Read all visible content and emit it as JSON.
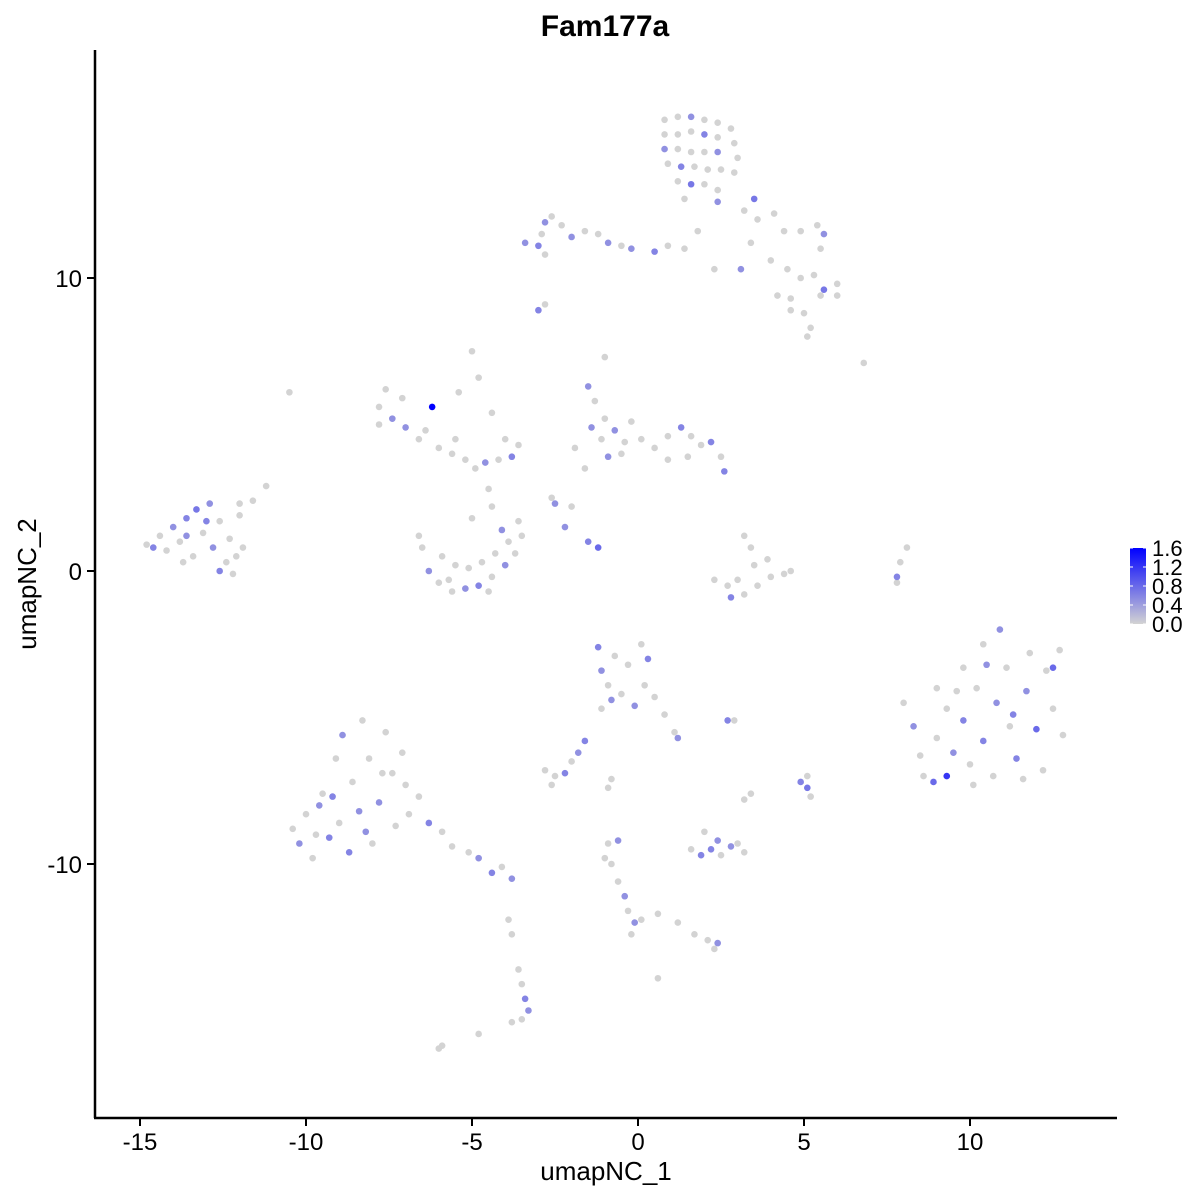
{
  "chart_data": {
    "type": "scatter",
    "title": "Fam177a",
    "xlabel": "umapNC_1",
    "ylabel": "umapNC_2",
    "xlim": [
      -16.4,
      14.4
    ],
    "ylim": [
      -18.7,
      17.8
    ],
    "xticks": [
      -15,
      -10,
      -5,
      0,
      5,
      10
    ],
    "yticks": [
      -10,
      0,
      10
    ],
    "xtick_labels": [
      "-15",
      "-10",
      "-5",
      "0",
      "5",
      "10"
    ],
    "ytick_labels": [
      "-10",
      "0",
      "10"
    ],
    "grid": false,
    "legend": {
      "position": "right",
      "type": "colorbar",
      "min": 0.0,
      "max": 1.6,
      "ticks": [
        0.0,
        0.4,
        0.8,
        1.2,
        1.6
      ],
      "tick_labels": [
        "0.0",
        "0.4",
        "0.8",
        "1.2",
        "1.6"
      ],
      "low_color": "#D3D3D3",
      "high_color": "#0000FF"
    },
    "point_format": [
      "x",
      "y",
      "expression"
    ],
    "points": [
      [
        0.8,
        15.4,
        0
      ],
      [
        1.2,
        15.5,
        0
      ],
      [
        1.6,
        15.5,
        0.5
      ],
      [
        2.0,
        15.4,
        0
      ],
      [
        2.4,
        15.3,
        0
      ],
      [
        2.8,
        15.1,
        0
      ],
      [
        0.8,
        14.9,
        0
      ],
      [
        1.2,
        14.9,
        0
      ],
      [
        1.6,
        15.0,
        0
      ],
      [
        2.0,
        14.9,
        0.6
      ],
      [
        2.4,
        14.8,
        0
      ],
      [
        2.9,
        14.6,
        0
      ],
      [
        0.8,
        14.4,
        0.5
      ],
      [
        1.2,
        14.4,
        0
      ],
      [
        1.6,
        14.3,
        0
      ],
      [
        2.0,
        14.3,
        0
      ],
      [
        2.4,
        14.3,
        0.5
      ],
      [
        3.0,
        14.1,
        0
      ],
      [
        0.9,
        13.9,
        0
      ],
      [
        1.3,
        13.8,
        0.6
      ],
      [
        1.7,
        13.8,
        0
      ],
      [
        2.1,
        13.7,
        0
      ],
      [
        2.5,
        13.7,
        0
      ],
      [
        2.9,
        13.6,
        0
      ],
      [
        1.2,
        13.3,
        0
      ],
      [
        1.6,
        13.2,
        0.7
      ],
      [
        2.0,
        13.2,
        0
      ],
      [
        2.4,
        13.0,
        0
      ],
      [
        1.4,
        12.7,
        0
      ],
      [
        2.4,
        12.6,
        0.5
      ],
      [
        3.5,
        12.7,
        0.7
      ],
      [
        3.2,
        12.3,
        0
      ],
      [
        3.6,
        12.0,
        0
      ],
      [
        4.1,
        12.2,
        0
      ],
      [
        4.4,
        11.6,
        0
      ],
      [
        4.9,
        11.6,
        0
      ],
      [
        5.4,
        11.8,
        0
      ],
      [
        5.6,
        11.5,
        0.5
      ],
      [
        5.5,
        11.0,
        0
      ],
      [
        4.0,
        10.6,
        0
      ],
      [
        4.5,
        10.3,
        0
      ],
      [
        4.9,
        10.0,
        0
      ],
      [
        5.3,
        10.1,
        0
      ],
      [
        5.6,
        9.6,
        0.7
      ],
      [
        6.0,
        9.8,
        0
      ],
      [
        6.0,
        9.4,
        0
      ],
      [
        5.5,
        9.4,
        0
      ],
      [
        4.6,
        9.3,
        0
      ],
      [
        4.2,
        9.4,
        0
      ],
      [
        4.6,
        8.9,
        0
      ],
      [
        5.0,
        8.8,
        0
      ],
      [
        5.2,
        8.3,
        0
      ],
      [
        3.1,
        10.3,
        0.5
      ],
      [
        2.3,
        10.3,
        0
      ],
      [
        3.4,
        11.2,
        0
      ],
      [
        -3.4,
        11.2,
        0.5
      ],
      [
        -3.0,
        11.1,
        0.6
      ],
      [
        -2.8,
        11.9,
        0.5
      ],
      [
        -2.6,
        12.1,
        0
      ],
      [
        -2.3,
        11.8,
        0
      ],
      [
        -2.0,
        11.4,
        0.5
      ],
      [
        -1.6,
        11.6,
        0
      ],
      [
        -1.2,
        11.5,
        0
      ],
      [
        -0.9,
        11.2,
        0.5
      ],
      [
        -0.5,
        11.1,
        0
      ],
      [
        -0.2,
        11.0,
        0.5
      ],
      [
        0.5,
        10.9,
        0.6
      ],
      [
        0.9,
        11.1,
        0
      ],
      [
        1.4,
        11.0,
        0
      ],
      [
        1.8,
        11.6,
        0
      ],
      [
        -2.8,
        10.8,
        0
      ],
      [
        -3.0,
        8.9,
        0.6
      ],
      [
        -2.8,
        9.1,
        0
      ],
      [
        -2.9,
        11.5,
        0
      ],
      [
        -14.6,
        0.8,
        0.6
      ],
      [
        -14.4,
        1.2,
        0
      ],
      [
        -14.2,
        0.7,
        0
      ],
      [
        -14.0,
        1.5,
        0.5
      ],
      [
        -13.8,
        1.0,
        0
      ],
      [
        -13.6,
        1.8,
        0.6
      ],
      [
        -13.4,
        0.5,
        0
      ],
      [
        -13.3,
        2.1,
        0.7
      ],
      [
        -13.1,
        1.3,
        0
      ],
      [
        -12.9,
        2.3,
        0.5
      ],
      [
        -12.8,
        0.8,
        0.5
      ],
      [
        -12.6,
        1.7,
        0
      ],
      [
        -12.4,
        0.3,
        0
      ],
      [
        -12.3,
        1.1,
        0
      ],
      [
        -12.1,
        0.5,
        0
      ],
      [
        -12.0,
        1.9,
        0
      ],
      [
        -11.9,
        0.8,
        0
      ],
      [
        -13.7,
        0.3,
        0
      ],
      [
        -14.8,
        0.9,
        0
      ],
      [
        -12.2,
        -0.1,
        0
      ],
      [
        -12.6,
        0.0,
        0.6
      ],
      [
        -11.6,
        2.4,
        0
      ],
      [
        -11.2,
        2.9,
        0
      ],
      [
        -12.0,
        2.3,
        0
      ],
      [
        -13.0,
        1.7,
        0.6
      ],
      [
        -13.6,
        1.2,
        0.5
      ],
      [
        -7.8,
        5.6,
        0
      ],
      [
        -7.6,
        6.2,
        0
      ],
      [
        -7.4,
        5.2,
        0.5
      ],
      [
        -7.1,
        5.9,
        0
      ],
      [
        -7.0,
        4.9,
        0.5
      ],
      [
        -6.6,
        4.5,
        0
      ],
      [
        -6.2,
        5.6,
        1.6
      ],
      [
        -6.0,
        4.2,
        0
      ],
      [
        -5.6,
        4.0,
        0
      ],
      [
        -5.2,
        3.8,
        0
      ],
      [
        -4.9,
        3.5,
        0
      ],
      [
        -4.6,
        3.7,
        0.5
      ],
      [
        -4.2,
        3.8,
        0
      ],
      [
        -3.8,
        3.9,
        0.6
      ],
      [
        -3.6,
        4.3,
        0
      ],
      [
        -5.4,
        6.1,
        0
      ],
      [
        -5.0,
        7.5,
        0
      ],
      [
        -4.8,
        6.6,
        0
      ],
      [
        -4.4,
        5.4,
        0
      ],
      [
        -4.0,
        4.5,
        0
      ],
      [
        -7.8,
        5.0,
        0
      ],
      [
        -6.4,
        4.8,
        0
      ],
      [
        -4.5,
        2.8,
        0
      ],
      [
        -4.4,
        2.2,
        0
      ],
      [
        -6.5,
        0.8,
        0
      ],
      [
        -6.3,
        0.0,
        0.5
      ],
      [
        -6.0,
        -0.4,
        0
      ],
      [
        -5.6,
        -0.7,
        0
      ],
      [
        -5.2,
        -0.6,
        0.5
      ],
      [
        -4.8,
        -0.5,
        0.6
      ],
      [
        -4.4,
        -0.2,
        0
      ],
      [
        -4.0,
        0.2,
        0.5
      ],
      [
        -3.7,
        0.6,
        0
      ],
      [
        -3.5,
        1.2,
        0
      ],
      [
        -3.6,
        1.7,
        0
      ],
      [
        -3.9,
        1.0,
        0
      ],
      [
        -4.3,
        0.6,
        0
      ],
      [
        -4.7,
        0.3,
        0
      ],
      [
        -5.1,
        0.1,
        0
      ],
      [
        -5.5,
        0.2,
        0
      ],
      [
        -5.9,
        0.5,
        0
      ],
      [
        -6.6,
        1.2,
        0
      ],
      [
        -5.7,
        -0.3,
        0
      ],
      [
        -4.5,
        -0.7,
        0
      ],
      [
        -5.0,
        1.8,
        0
      ],
      [
        -4.1,
        1.4,
        0.5
      ],
      [
        -1.5,
        6.3,
        0.5
      ],
      [
        -1.3,
        5.8,
        0
      ],
      [
        -1.0,
        5.2,
        0
      ],
      [
        -1.4,
        4.9,
        0.5
      ],
      [
        -1.1,
        4.5,
        0
      ],
      [
        -0.7,
        4.8,
        0.5
      ],
      [
        -0.4,
        4.4,
        0
      ],
      [
        -0.9,
        3.9,
        0.5
      ],
      [
        -0.5,
        4.0,
        0
      ],
      [
        0.1,
        4.5,
        0
      ],
      [
        0.5,
        4.2,
        0
      ],
      [
        0.9,
        4.6,
        0
      ],
      [
        1.3,
        4.9,
        0.6
      ],
      [
        1.6,
        4.6,
        0
      ],
      [
        1.9,
        4.3,
        0
      ],
      [
        2.2,
        4.4,
        0.6
      ],
      [
        2.5,
        3.9,
        0
      ],
      [
        2.6,
        3.4,
        0.6
      ],
      [
        1.5,
        3.9,
        0
      ],
      [
        0.9,
        3.8,
        0
      ],
      [
        -1.6,
        3.5,
        0
      ],
      [
        -1.9,
        4.2,
        0
      ],
      [
        -0.2,
        5.1,
        0
      ],
      [
        -2.5,
        2.3,
        0.5
      ],
      [
        -2.2,
        1.5,
        0.5
      ],
      [
        -1.5,
        1.0,
        0.6
      ],
      [
        -1.2,
        0.8,
        0.8
      ],
      [
        -2.6,
        2.5,
        0
      ],
      [
        2.3,
        -0.3,
        0
      ],
      [
        2.7,
        -0.5,
        0
      ],
      [
        2.8,
        -0.9,
        0.6
      ],
      [
        3.2,
        -0.8,
        0
      ],
      [
        3.6,
        -0.5,
        0
      ],
      [
        4.0,
        -0.2,
        0
      ],
      [
        4.4,
        -0.1,
        0
      ],
      [
        4.6,
        0.0,
        0
      ],
      [
        3.9,
        0.4,
        0
      ],
      [
        3.4,
        0.8,
        0
      ],
      [
        3.2,
        1.2,
        0
      ],
      [
        3.5,
        0.2,
        0
      ],
      [
        3.0,
        -0.3,
        0
      ],
      [
        7.8,
        -0.2,
        0.6
      ],
      [
        7.9,
        0.3,
        0
      ],
      [
        8.1,
        0.8,
        0
      ],
      [
        7.8,
        -0.4,
        0
      ],
      [
        8.0,
        -4.5,
        0
      ],
      [
        8.3,
        -5.3,
        0.5
      ],
      [
        8.5,
        -6.3,
        0
      ],
      [
        8.6,
        -7.0,
        0
      ],
      [
        8.9,
        -7.2,
        0.8
      ],
      [
        9.3,
        -7.0,
        1.2
      ],
      [
        9.0,
        -5.7,
        0
      ],
      [
        9.3,
        -4.7,
        0
      ],
      [
        9.5,
        -6.2,
        0.5
      ],
      [
        9.8,
        -3.3,
        0
      ],
      [
        9.8,
        -5.1,
        0.6
      ],
      [
        10.0,
        -6.6,
        0
      ],
      [
        10.2,
        -4.0,
        0
      ],
      [
        10.4,
        -2.5,
        0
      ],
      [
        10.4,
        -5.8,
        0.6
      ],
      [
        10.7,
        -7.0,
        0
      ],
      [
        10.8,
        -4.5,
        0.5
      ],
      [
        10.9,
        -2.0,
        0.5
      ],
      [
        11.1,
        -3.3,
        0
      ],
      [
        11.2,
        -5.3,
        0
      ],
      [
        11.4,
        -6.4,
        0.6
      ],
      [
        11.7,
        -4.1,
        0.5
      ],
      [
        11.8,
        -2.8,
        0
      ],
      [
        12.0,
        -5.4,
        0.8
      ],
      [
        12.2,
        -6.8,
        0
      ],
      [
        12.3,
        -3.4,
        0
      ],
      [
        12.5,
        -4.7,
        0
      ],
      [
        12.7,
        -2.7,
        0
      ],
      [
        12.8,
        -5.6,
        0
      ],
      [
        11.6,
        -7.1,
        0
      ],
      [
        10.5,
        -3.2,
        0.5
      ],
      [
        9.6,
        -4.1,
        0
      ],
      [
        12.5,
        -3.3,
        0.8
      ],
      [
        11.3,
        -4.9,
        0.6
      ],
      [
        10.1,
        -7.3,
        0
      ],
      [
        9.0,
        -4.0,
        0
      ],
      [
        -10.4,
        -8.8,
        0
      ],
      [
        -10.2,
        -9.3,
        0.5
      ],
      [
        -10.0,
        -8.3,
        0
      ],
      [
        -9.8,
        -9.8,
        0
      ],
      [
        -9.6,
        -8.0,
        0.5
      ],
      [
        -9.5,
        -7.6,
        0
      ],
      [
        -9.3,
        -9.1,
        0.6
      ],
      [
        -9.1,
        -6.4,
        0
      ],
      [
        -9.0,
        -8.6,
        0
      ],
      [
        -8.9,
        -5.6,
        0.5
      ],
      [
        -8.7,
        -9.6,
        0.6
      ],
      [
        -8.6,
        -7.2,
        0
      ],
      [
        -8.4,
        -8.2,
        0.5
      ],
      [
        -8.3,
        -5.1,
        0
      ],
      [
        -8.1,
        -6.4,
        0
      ],
      [
        -8.0,
        -9.3,
        0
      ],
      [
        -7.8,
        -7.9,
        0.5
      ],
      [
        -7.6,
        -5.5,
        0
      ],
      [
        -7.4,
        -6.9,
        0
      ],
      [
        -7.3,
        -8.7,
        0
      ],
      [
        -7.1,
        -6.2,
        0
      ],
      [
        -6.9,
        -8.3,
        0
      ],
      [
        -6.6,
        -7.7,
        0
      ],
      [
        -6.3,
        -8.6,
        0.6
      ],
      [
        -5.9,
        -8.9,
        0
      ],
      [
        -5.6,
        -9.4,
        0
      ],
      [
        -5.1,
        -9.6,
        0
      ],
      [
        -4.8,
        -9.8,
        0.5
      ],
      [
        -4.4,
        -10.3,
        0.6
      ],
      [
        -4.1,
        -10.1,
        0
      ],
      [
        -3.8,
        -10.5,
        0.5
      ],
      [
        -9.7,
        -9.0,
        0
      ],
      [
        -8.2,
        -8.9,
        0.5
      ],
      [
        -7.7,
        -6.9,
        0
      ],
      [
        -9.2,
        -7.7,
        0.6
      ],
      [
        -7.0,
        -7.3,
        0
      ],
      [
        -1.2,
        -2.6,
        0.6
      ],
      [
        -1.1,
        -3.4,
        0.5
      ],
      [
        -0.9,
        -3.9,
        0
      ],
      [
        -0.7,
        -2.9,
        0
      ],
      [
        -0.5,
        -4.2,
        0
      ],
      [
        -0.3,
        -3.2,
        0
      ],
      [
        -0.1,
        -4.6,
        0.5
      ],
      [
        0.2,
        -3.9,
        0
      ],
      [
        0.3,
        -3.0,
        0.6
      ],
      [
        0.5,
        -4.3,
        0
      ],
      [
        -1.1,
        -4.7,
        0
      ],
      [
        0.1,
        -2.5,
        0
      ],
      [
        0.8,
        -4.9,
        0
      ],
      [
        1.1,
        -5.5,
        0
      ],
      [
        1.2,
        -5.7,
        0.5
      ],
      [
        -0.8,
        -4.4,
        0.5
      ],
      [
        -2.8,
        -6.8,
        0
      ],
      [
        -2.5,
        -7.0,
        0
      ],
      [
        -2.2,
        -6.9,
        0.6
      ],
      [
        -2.0,
        -6.5,
        0
      ],
      [
        -1.8,
        -6.2,
        0.5
      ],
      [
        -1.6,
        -5.8,
        0.6
      ],
      [
        -2.6,
        -7.3,
        0
      ],
      [
        2.7,
        -5.1,
        0.6
      ],
      [
        2.9,
        -5.1,
        0
      ],
      [
        1.6,
        -9.5,
        0
      ],
      [
        1.9,
        -9.7,
        0.6
      ],
      [
        2.2,
        -9.5,
        0.6
      ],
      [
        2.5,
        -9.7,
        0
      ],
      [
        2.8,
        -9.4,
        0.5
      ],
      [
        3.0,
        -9.3,
        0
      ],
      [
        2.0,
        -8.9,
        0
      ],
      [
        2.4,
        -9.2,
        0.5
      ],
      [
        3.2,
        -9.6,
        0
      ],
      [
        4.9,
        -7.2,
        0.6
      ],
      [
        5.1,
        -7.0,
        0
      ],
      [
        5.1,
        -7.4,
        0.7
      ],
      [
        5.2,
        -7.7,
        0
      ],
      [
        3.4,
        -7.6,
        0
      ],
      [
        3.2,
        -7.8,
        0
      ],
      [
        -0.8,
        -7.1,
        0
      ],
      [
        -0.9,
        -7.4,
        0
      ],
      [
        -0.9,
        -9.3,
        0
      ],
      [
        -0.8,
        -10.0,
        0
      ],
      [
        -0.6,
        -10.6,
        0
      ],
      [
        -0.4,
        -11.1,
        0.5
      ],
      [
        -0.3,
        -11.6,
        0
      ],
      [
        -0.1,
        -12.0,
        0.5
      ],
      [
        -0.2,
        -12.4,
        0
      ],
      [
        0.1,
        -11.9,
        0
      ],
      [
        0.6,
        -11.7,
        0
      ],
      [
        1.2,
        -12.0,
        0
      ],
      [
        1.7,
        -12.4,
        0
      ],
      [
        2.1,
        -12.6,
        0
      ],
      [
        2.4,
        -12.7,
        0.5
      ],
      [
        2.3,
        -12.9,
        0
      ],
      [
        0.6,
        -13.9,
        0
      ],
      [
        -1.0,
        -9.8,
        0
      ],
      [
        -0.6,
        -9.2,
        0.5
      ],
      [
        -3.9,
        -11.9,
        0
      ],
      [
        -3.8,
        -12.4,
        0
      ],
      [
        -3.6,
        -13.6,
        0
      ],
      [
        -3.5,
        -14.1,
        0
      ],
      [
        -3.4,
        -14.6,
        0.6
      ],
      [
        -3.3,
        -15.0,
        0.5
      ],
      [
        -3.5,
        -15.3,
        0
      ],
      [
        -3.8,
        -15.4,
        0
      ],
      [
        -4.8,
        -15.8,
        0
      ],
      [
        -5.9,
        -16.2,
        0
      ],
      [
        -6.0,
        -16.3,
        0
      ],
      [
        -10.5,
        6.1,
        0
      ],
      [
        -1.0,
        7.3,
        0
      ],
      [
        6.8,
        7.1,
        0
      ],
      [
        5.1,
        8.0,
        0
      ],
      [
        -2.0,
        2.2,
        0
      ],
      [
        -5.5,
        4.5,
        0
      ]
    ]
  }
}
